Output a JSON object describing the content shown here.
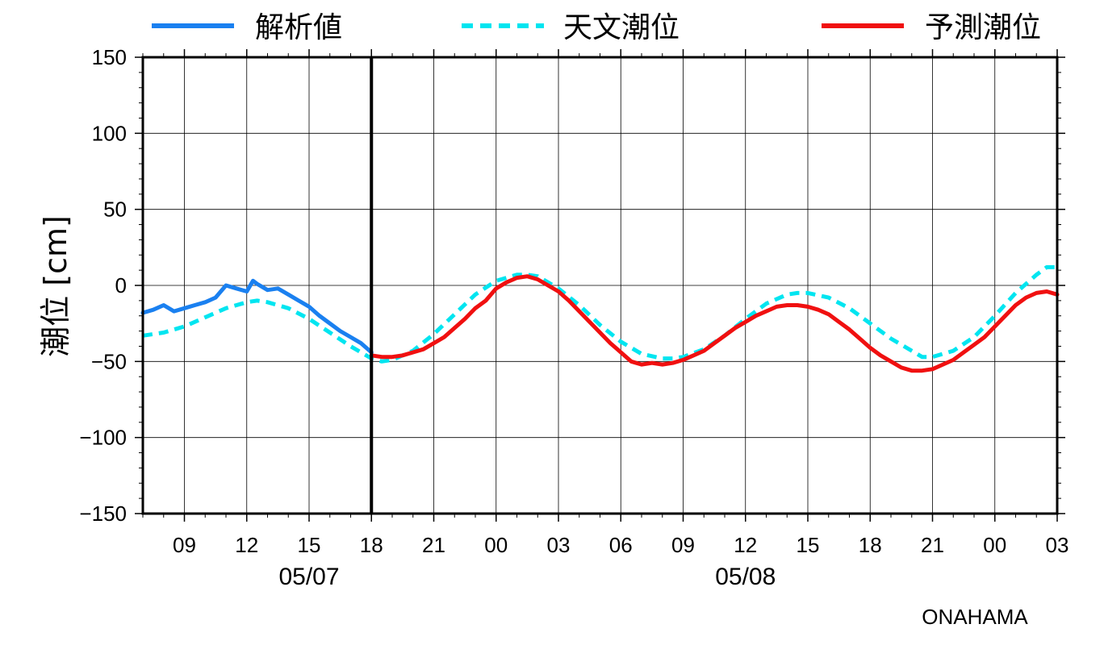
{
  "chart_data": {
    "type": "line",
    "ylabel": "潮位 [cm]",
    "ylim": [
      -150,
      150
    ],
    "yticks": [
      150,
      100,
      50,
      0,
      -50,
      -100,
      -150
    ],
    "ytick_labels": [
      "150",
      "100",
      "50",
      "0",
      "−50",
      "−100",
      "−150"
    ],
    "xlim": [
      7,
      51
    ],
    "x_unit": "hours from 05/07 00:00",
    "xticks": [
      9,
      12,
      15,
      18,
      21,
      24,
      27,
      30,
      33,
      36,
      39,
      42,
      45,
      48,
      51
    ],
    "xtick_labels": [
      "09",
      "12",
      "15",
      "18",
      "21",
      "00",
      "03",
      "06",
      "09",
      "12",
      "15",
      "18",
      "21",
      "00",
      "03"
    ],
    "date_labels": [
      {
        "x": 15,
        "text": "05/07"
      },
      {
        "x": 36,
        "text": "05/08"
      }
    ],
    "current_time_x": 18,
    "grid": true,
    "legend_position": "top",
    "station": "ONAHAMA",
    "series": [
      {
        "name": "解析値",
        "color": "#1a80f0",
        "style": "solid",
        "x": [
          7,
          7.5,
          8,
          8.5,
          9,
          9.5,
          10,
          10.5,
          11,
          11.5,
          12,
          12.3,
          12.5,
          13,
          13.5,
          14,
          14.5,
          15,
          15.5,
          16,
          16.5,
          17,
          17.5,
          18
        ],
        "y": [
          -18,
          -16,
          -13,
          -17,
          -15,
          -13,
          -11,
          -8,
          0,
          -2,
          -4,
          3,
          1,
          -3,
          -2,
          -6,
          -10,
          -14,
          -20,
          -25,
          -30,
          -34,
          -38,
          -44
        ]
      },
      {
        "name": "天文潮位",
        "color": "#00e5f0",
        "style": "dashed",
        "x": [
          7,
          8,
          9,
          10,
          11,
          12,
          12.5,
          13,
          14,
          15,
          16,
          17,
          18,
          18.5,
          19,
          20,
          21,
          22,
          23,
          24,
          25,
          25.5,
          26,
          27,
          28,
          29,
          30,
          31,
          32,
          32.5,
          33,
          34,
          35,
          36,
          37,
          38,
          38.5,
          39,
          40,
          41,
          42,
          43,
          44,
          44.5,
          45,
          46,
          47,
          48,
          49,
          50,
          50.5,
          51
        ],
        "y": [
          -33,
          -31,
          -27,
          -21,
          -15,
          -11,
          -10,
          -11,
          -15,
          -22,
          -31,
          -40,
          -48,
          -50,
          -49,
          -43,
          -32,
          -19,
          -6,
          3,
          7,
          7,
          6,
          -2,
          -13,
          -26,
          -37,
          -45,
          -48,
          -48,
          -47,
          -42,
          -33,
          -22,
          -12,
          -6,
          -5,
          -5,
          -8,
          -15,
          -25,
          -35,
          -43,
          -47,
          -47,
          -43,
          -34,
          -20,
          -5,
          7,
          12,
          12
        ]
      },
      {
        "name": "予測潮位",
        "color": "#f01010",
        "style": "solid",
        "x": [
          18,
          18.5,
          19,
          19.5,
          20,
          20.5,
          21,
          21.5,
          22,
          22.5,
          23,
          23.5,
          24,
          24.5,
          25,
          25.5,
          26,
          26.5,
          27,
          27.5,
          28,
          28.5,
          29,
          29.5,
          30,
          30.5,
          31,
          31.5,
          32,
          32.5,
          33,
          33.5,
          34,
          34.5,
          35,
          35.5,
          36,
          36.5,
          37,
          37.5,
          38,
          38.5,
          39,
          39.5,
          40,
          40.5,
          41,
          41.5,
          42,
          42.5,
          43,
          43.5,
          44,
          44.5,
          45,
          45.5,
          46,
          46.5,
          47,
          47.5,
          48,
          48.5,
          49,
          49.5,
          50,
          50.5,
          51
        ],
        "y": [
          -46,
          -47,
          -47,
          -46,
          -44,
          -42,
          -38,
          -34,
          -28,
          -22,
          -15,
          -10,
          -2,
          2,
          5,
          6,
          4,
          0,
          -4,
          -10,
          -17,
          -24,
          -31,
          -38,
          -44,
          -50,
          -52,
          -51,
          -52,
          -51,
          -49,
          -46,
          -43,
          -38,
          -33,
          -28,
          -24,
          -20,
          -17,
          -14,
          -13,
          -13,
          -14,
          -16,
          -19,
          -24,
          -29,
          -35,
          -41,
          -46,
          -50,
          -54,
          -56,
          -56,
          -55,
          -52,
          -49,
          -44,
          -39,
          -34,
          -27,
          -20,
          -13,
          -8,
          -5,
          -4,
          -6
        ]
      }
    ]
  }
}
